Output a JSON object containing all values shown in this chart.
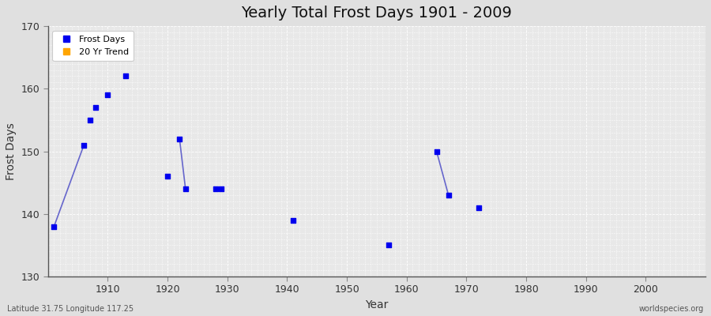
{
  "title": "Yearly Total Frost Days 1901 - 2009",
  "xlabel": "Year",
  "ylabel": "Frost Days",
  "subtitle": "Latitude 31.75 Longitude 117.25",
  "watermark": "worldspecies.org",
  "ylim": [
    130,
    170
  ],
  "xlim": [
    1900,
    2010
  ],
  "xticks": [
    1910,
    1920,
    1930,
    1940,
    1950,
    1960,
    1970,
    1980,
    1990,
    2000
  ],
  "yticks": [
    130,
    140,
    150,
    160,
    170
  ],
  "fig_bg_color": "#e0e0e0",
  "plot_bg_color": "#e8e8e8",
  "grid_color": "#ffffff",
  "point_color": "#0000ee",
  "line_color": "#6666cc",
  "frost_days_x": [
    1901,
    1906,
    1907,
    1908,
    1910,
    1913,
    1920,
    1922,
    1923,
    1928,
    1929,
    1941,
    1957,
    1965,
    1967,
    1972
  ],
  "frost_days_y": [
    138,
    151,
    155,
    157,
    159,
    162,
    146,
    152,
    144,
    144,
    144,
    139,
    135,
    150,
    143,
    141
  ],
  "trend_segments": [
    [
      [
        1901,
        138
      ],
      [
        1906,
        151
      ]
    ],
    [
      [
        1922,
        152
      ],
      [
        1923,
        144
      ]
    ],
    [
      [
        1965,
        150
      ],
      [
        1967,
        143
      ]
    ]
  ],
  "legend_frost_color": "#0000ee",
  "legend_trend_color": "#ffa500",
  "marker_size": 4,
  "line_width": 1.2,
  "title_fontsize": 14,
  "axis_label_fontsize": 10,
  "tick_fontsize": 9,
  "legend_fontsize": 8,
  "subtitle_fontsize": 7,
  "watermark_fontsize": 7
}
